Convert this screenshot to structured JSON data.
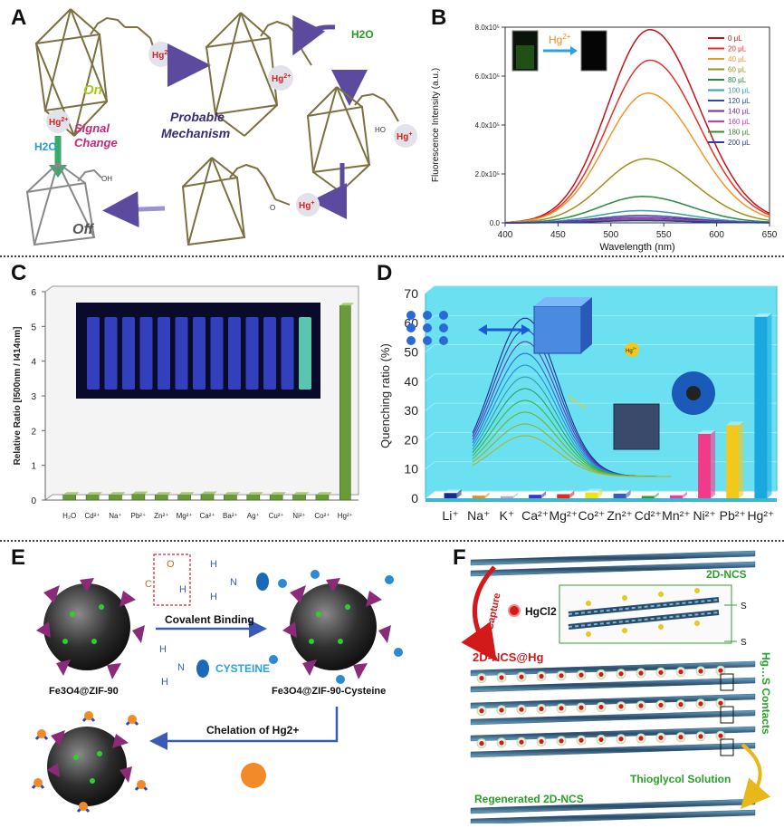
{
  "panels": {
    "A": {
      "label": "A",
      "on": "On",
      "off": "Off",
      "signal_change": [
        "Signal",
        "Change"
      ],
      "probable_mechanism": [
        "Probable",
        "Mechanism"
      ],
      "h2o": "H2O",
      "hg": "Hg",
      "charge_2plus": "2+",
      "charge_plus": "+",
      "oh": "OH",
      "ho": "HO",
      "o": "O"
    },
    "B": {
      "label": "B",
      "inset_hg": "Hg",
      "inset_hg_charge": "2+"
    },
    "C": {
      "label": "C"
    },
    "D": {
      "label": "D",
      "inset_hg": "Hg",
      "inset_hg_charge": "2+",
      "inset_nm": "150 nm"
    },
    "E": {
      "label": "E",
      "covalent_binding": "Covalent Binding",
      "cysteine": "CYSTEINE",
      "mof_left": "Fe3O4@ZIF-90",
      "mof_right": "Fe3O4@ZIF-90-Cysteine",
      "chelation": "Chelation of Hg2+",
      "atom_h": "H",
      "atom_n": "N",
      "atom_c": "C",
      "atom_o": "O"
    },
    "F": {
      "label": "F",
      "ncs": "2D-NCS",
      "capture": "Capture",
      "hgcl2": "HgCl2",
      "ncs_hg": "2D-NCS@Hg",
      "contacts": "Hg…S Contacts",
      "thioglycol": "Thioglycol Solution",
      "regenerated": "Regenerated 2D-NCS",
      "s_top": "S",
      "s_bottom": "S"
    }
  },
  "chart_data": [
    {
      "panel": "B",
      "type": "line",
      "xlabel": "Wavelength (nm)",
      "ylabel": "Fluorescence Intensity (a.u.)",
      "xlim": [
        400,
        650
      ],
      "ylim": [
        0,
        800000
      ],
      "x_ticks": [
        "400",
        "450",
        "500",
        "550",
        "600",
        "650"
      ],
      "y_ticks": [
        "0.0",
        "2.0x10⁵",
        "4.0x10⁵",
        "6.0x10⁵",
        "8.0x10⁵"
      ],
      "legend_position": "top-right",
      "series": [
        {
          "name": "0 μL",
          "color": "#c0141e",
          "peak_x": 537,
          "peak_y": 790000
        },
        {
          "name": "20 μL",
          "color": "#e8302a",
          "peak_x": 537,
          "peak_y": 665000
        },
        {
          "name": "40 μL",
          "color": "#f2962a",
          "peak_x": 535,
          "peak_y": 530000
        },
        {
          "name": "60 μL",
          "color": "#9a9218",
          "peak_x": 533,
          "peak_y": 262000
        },
        {
          "name": "80 μL",
          "color": "#2a8a3a",
          "peak_x": 530,
          "peak_y": 108000
        },
        {
          "name": "100 μL",
          "color": "#3aa0a8",
          "peak_x": 528,
          "peak_y": 50000
        },
        {
          "name": "120 μL",
          "color": "#2a4aa8",
          "peak_x": 528,
          "peak_y": 30000
        },
        {
          "name": "140 μL",
          "color": "#7a2aa8",
          "peak_x": 528,
          "peak_y": 22000
        },
        {
          "name": "160 μL",
          "color": "#d23aa0",
          "peak_x": 528,
          "peak_y": 16000
        },
        {
          "name": "180 μL",
          "color": "#3a8a2a",
          "peak_x": 528,
          "peak_y": 12000
        },
        {
          "name": "200 μL",
          "color": "#2a3ab8",
          "peak_x": 528,
          "peak_y": 9000
        }
      ]
    },
    {
      "panel": "C",
      "type": "bar",
      "ylabel": "Relative Ratio [I500nm / I414nm]",
      "ylim": [
        0,
        6
      ],
      "y_ticks": [
        "0",
        "1",
        "2",
        "3",
        "4",
        "5",
        "6"
      ],
      "categories": [
        "H₂O",
        "Cd²⁺",
        "Na⁺",
        "Pb²⁺",
        "Zn²⁺",
        "Mg²⁺",
        "Ca²⁺",
        "Ba²⁺",
        "Ag⁺",
        "Cu²⁺",
        "Ni²⁺",
        "Co²⁺",
        "Hg²⁺"
      ],
      "values": [
        0.15,
        0.15,
        0.15,
        0.17,
        0.15,
        0.15,
        0.17,
        0.15,
        0.15,
        0.15,
        0.15,
        0.15,
        5.6
      ],
      "color": "#6a9a3a"
    },
    {
      "panel": "D",
      "type": "bar",
      "ylabel": "Quenching ratio (%)",
      "ylim": [
        0,
        70
      ],
      "y_ticks": [
        "0",
        "10",
        "20",
        "30",
        "40",
        "50",
        "60",
        "70"
      ],
      "categories": [
        "Li⁺",
        "Na⁺",
        "K⁺",
        "Ca²⁺",
        "Mg²⁺",
        "Co²⁺",
        "Zn²⁺",
        "Cd²⁺",
        "Mn²⁺",
        "Ni²⁺",
        "Pb²⁺",
        "Hg²⁺"
      ],
      "values": [
        1.8,
        0.9,
        0.7,
        1.2,
        1.4,
        2.0,
        1.6,
        0.8,
        1.0,
        22,
        25,
        62
      ],
      "colors": [
        "#1a2a88",
        "#f28a1a",
        "#c8a0d8",
        "#3a3ab8",
        "#e02a2a",
        "#f2e01a",
        "#3a5ab8",
        "#2aa02a",
        "#e83aa8",
        "#f23a8a",
        "#f2c81a",
        "#1aa8e0"
      ]
    }
  ]
}
